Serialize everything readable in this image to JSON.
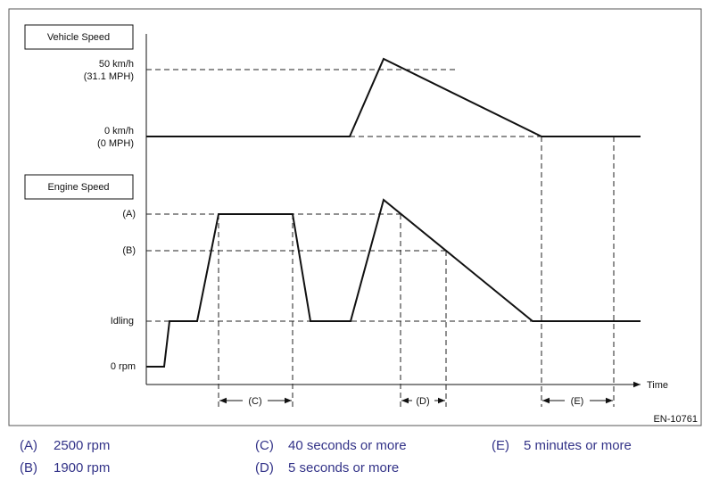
{
  "diagram": {
    "vehicle_speed_label": "Vehicle Speed",
    "engine_speed_label": "Engine Speed",
    "vehicle_axis": {
      "high": [
        "50 km/h",
        "(31.1 MPH)"
      ],
      "zero": [
        "0 km/h",
        "(0 MPH)"
      ]
    },
    "engine_axis": {
      "a": "(A)",
      "b": "(B)",
      "idling": "Idling",
      "zero": "0 rpm"
    },
    "time_label": "Time",
    "intervals": [
      "(C)",
      "(D)",
      "(E)"
    ],
    "figure_id": "EN-10761"
  },
  "legend": [
    {
      "key": "(A)",
      "text": "2500 rpm"
    },
    {
      "key": "(B)",
      "text": "1900 rpm"
    },
    {
      "key": "(C)",
      "text": "40 seconds or more"
    },
    {
      "key": "(D)",
      "text": "5 seconds or more"
    },
    {
      "key": "(E)",
      "text": "5 minutes or more"
    }
  ]
}
